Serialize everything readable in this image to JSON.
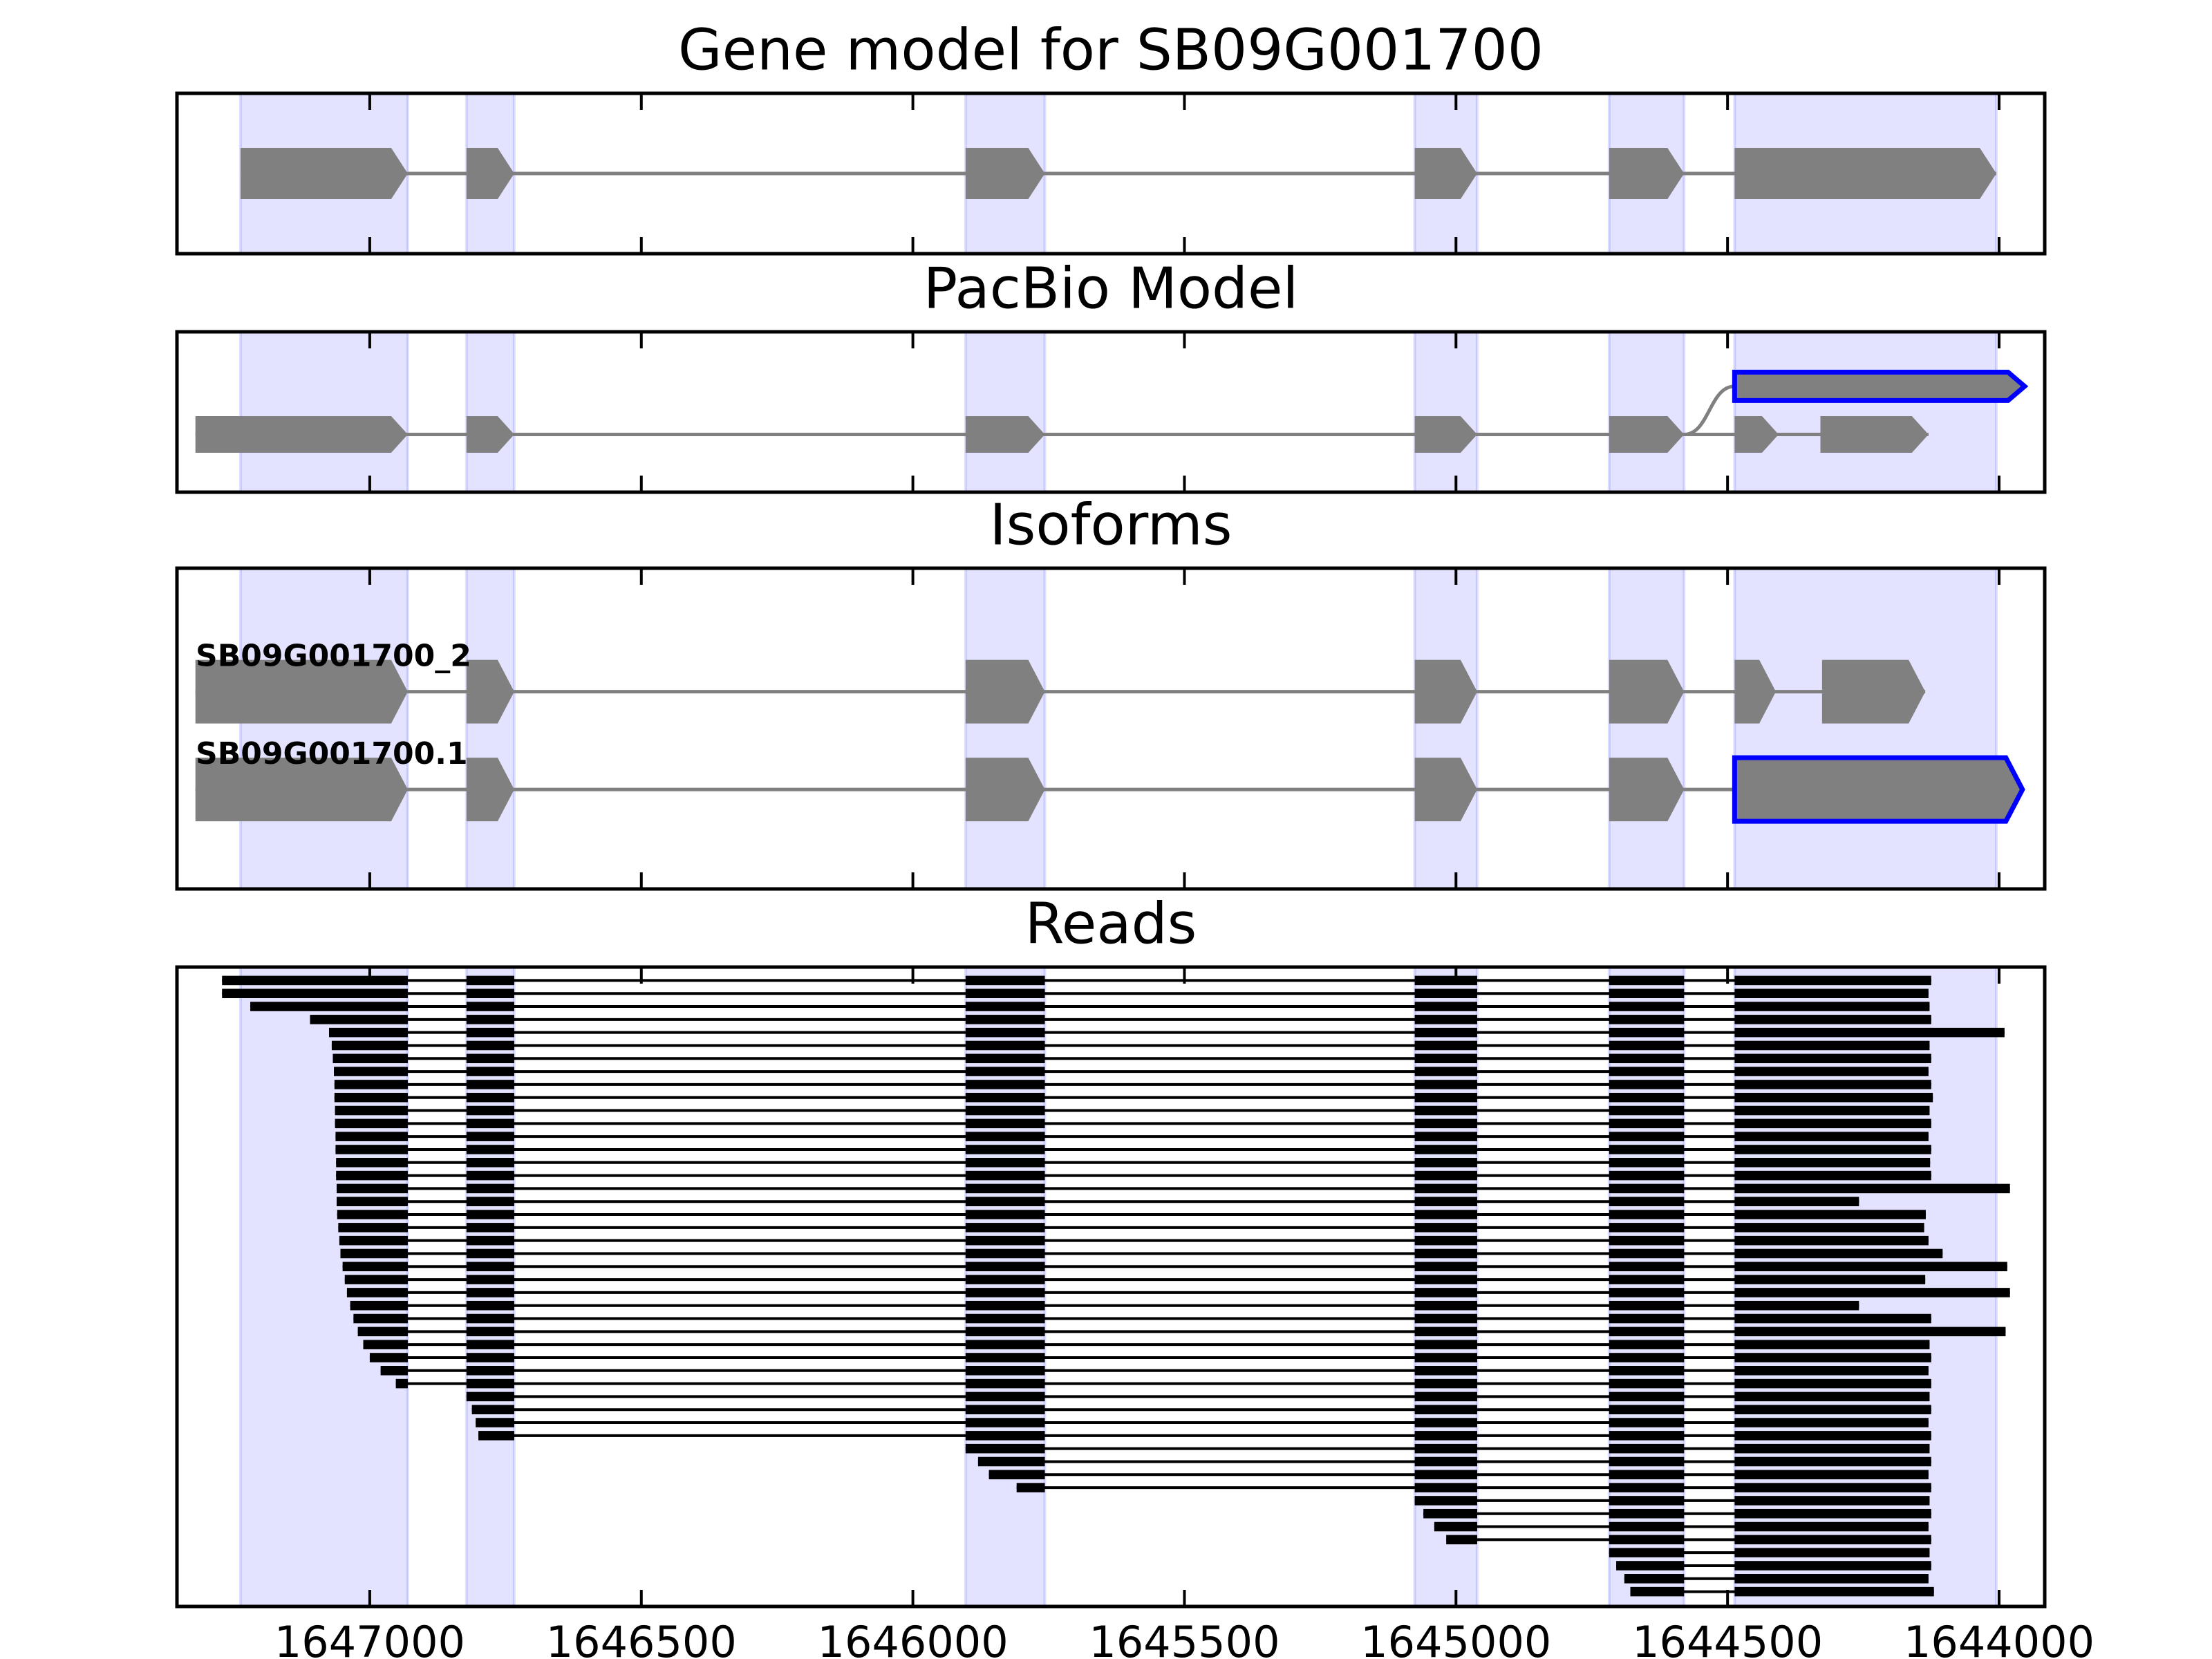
{
  "chart_data": [
    {
      "type": "track",
      "title": "Gene model for SB09G001700",
      "xlim": [
        1647355,
        1643916
      ],
      "xticks": [
        1647000,
        1646500,
        1646000,
        1645500,
        1645000,
        1644500,
        1644000
      ],
      "shade_color": "#0000ff",
      "features": [
        {
          "color": "#808080",
          "exons": [
            [
              1647238,
              1646930
            ],
            [
              1646822,
              1646734
            ],
            [
              1645903,
              1645757
            ],
            [
              1645076,
              1644961
            ],
            [
              1644718,
              1644580
            ],
            [
              1644487,
              1644005
            ]
          ]
        }
      ]
    },
    {
      "type": "track",
      "title": "PacBio Model",
      "xlim": [
        1647355,
        1643916
      ],
      "xticks": [
        1647000,
        1646500,
        1646000,
        1645500,
        1645000,
        1644500,
        1644000
      ],
      "features": [
        {
          "color": "#808080",
          "edge": "#0000ff",
          "exons": [
            [
              1647321,
              1646930
            ],
            [
              1646822,
              1646734
            ],
            [
              1645903,
              1645757
            ],
            [
              1645076,
              1644961
            ],
            [
              1644718,
              1644580
            ],
            [
              1644487,
              1644406
            ],
            [
              1644329,
              1644130
            ]
          ],
          "alt_exons": [
            [
              1644487,
              1643953
            ]
          ]
        }
      ]
    },
    {
      "type": "track",
      "title": "Isoforms",
      "xlim": [
        1647355,
        1643916
      ],
      "xticks": [
        1647000,
        1646500,
        1646000,
        1645500,
        1645000,
        1644500,
        1644000
      ],
      "features": [
        {
          "name": "SB09G001700_2",
          "color": "#808080",
          "exons": [
            [
              1647321,
              1646930
            ],
            [
              1646822,
              1646734
            ],
            [
              1645903,
              1645757
            ],
            [
              1645076,
              1644961
            ],
            [
              1644718,
              1644580
            ],
            [
              1644487,
              1644411
            ],
            [
              1644326,
              1644136
            ]
          ]
        },
        {
          "name": "SB09G001700.1",
          "color": "#808080",
          "edge": "#0000ff",
          "exons": [
            [
              1647321,
              1646930
            ],
            [
              1646822,
              1646734
            ],
            [
              1645903,
              1645757
            ],
            [
              1645076,
              1644961
            ],
            [
              1644718,
              1644580
            ]
          ],
          "novel_exons": [
            [
              1644487,
              1643957
            ]
          ]
        }
      ]
    },
    {
      "type": "reads",
      "title": "Reads",
      "color": "#000000",
      "xlim": [
        1647355,
        1643916
      ],
      "xticks": [
        1647000,
        1646500,
        1646000,
        1645500,
        1645000,
        1644500,
        1644000
      ],
      "reads": [
        [
          1647272,
          1644125
        ],
        [
          1647272,
          1644130
        ],
        [
          1647220,
          1644128
        ],
        [
          1647110,
          1644125
        ],
        [
          1647075,
          1643990
        ],
        [
          1647070,
          1644128
        ],
        [
          1647068,
          1644125
        ],
        [
          1647066,
          1644130
        ],
        [
          1647065,
          1644125
        ],
        [
          1647065,
          1644122
        ],
        [
          1647064,
          1644128
        ],
        [
          1647064,
          1644125
        ],
        [
          1647063,
          1644130
        ],
        [
          1647063,
          1644125
        ],
        [
          1647062,
          1644127
        ],
        [
          1647062,
          1644125
        ],
        [
          1647061,
          1643980
        ],
        [
          1647061,
          1644258
        ],
        [
          1647060,
          1644135
        ],
        [
          1647058,
          1644138
        ],
        [
          1647056,
          1644130
        ],
        [
          1647054,
          1644104
        ],
        [
          1647050,
          1643985
        ],
        [
          1647046,
          1644136
        ],
        [
          1647042,
          1643980
        ],
        [
          1647036,
          1644258
        ],
        [
          1647030,
          1644125
        ],
        [
          1647022,
          1643988
        ],
        [
          1647012,
          1644128
        ],
        [
          1647000,
          1644125
        ],
        [
          1646980,
          1644130
        ],
        [
          1646952,
          1644125
        ],
        [
          1646822,
          1644128
        ],
        [
          1646812,
          1644125
        ],
        [
          1646805,
          1644130
        ],
        [
          1646800,
          1644125
        ],
        [
          1645903,
          1644128
        ],
        [
          1645880,
          1644125
        ],
        [
          1645860,
          1644130
        ],
        [
          1645809,
          1644125
        ],
        [
          1645076,
          1644128
        ],
        [
          1645060,
          1644125
        ],
        [
          1645040,
          1644130
        ],
        [
          1645018,
          1644125
        ],
        [
          1644718,
          1644128
        ],
        [
          1644705,
          1644125
        ],
        [
          1644690,
          1644130
        ],
        [
          1644679,
          1644120
        ]
      ]
    }
  ]
}
